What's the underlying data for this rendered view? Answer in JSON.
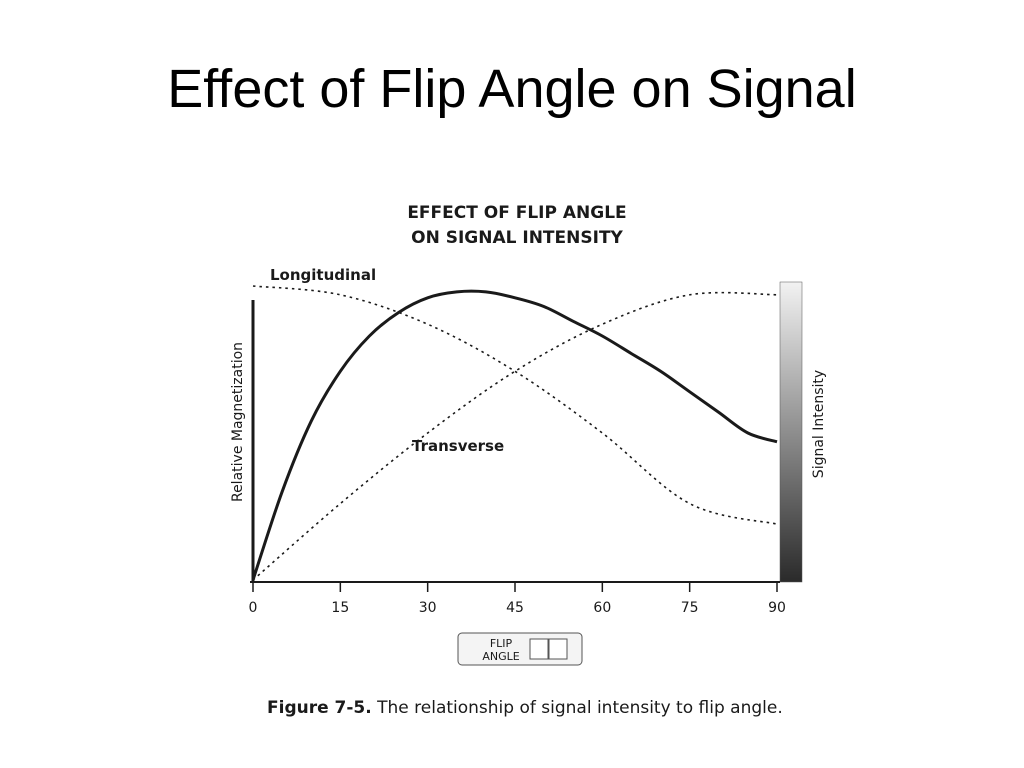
{
  "slide_title": "Effect of Flip Angle on Signal",
  "chart_data": {
    "type": "line",
    "title": "EFFECT OF FLIP ANGLE",
    "subtitle": "ON SIGNAL INTENSITY",
    "ylabel": "Relative Magnetization",
    "secondary_ylabel": "Signal Intensity",
    "xlabel": "",
    "xlim": [
      0,
      90
    ],
    "ylim": [
      0,
      1
    ],
    "grid": false,
    "xticks": [
      0,
      15,
      30,
      45,
      60,
      75,
      90
    ],
    "flip_angle_box": {
      "line1": "FLIP",
      "line2": "ANGLE"
    },
    "annotations": [
      {
        "text": "Longitudinal",
        "series": "longitudinal"
      },
      {
        "text": "Transverse",
        "series": "transverse"
      }
    ],
    "series": [
      {
        "name": "Longitudinal",
        "style": "dotted",
        "x": [
          0,
          15,
          30,
          45,
          60,
          75,
          90
        ],
        "y": [
          1.0,
          0.97,
          0.87,
          0.71,
          0.5,
          0.26,
          0.19
        ]
      },
      {
        "name": "Transverse",
        "style": "dotted",
        "x": [
          0,
          15,
          30,
          45,
          60,
          75,
          90
        ],
        "y": [
          0.0,
          0.26,
          0.5,
          0.71,
          0.87,
          0.97,
          0.97
        ]
      },
      {
        "name": "",
        "style": "solid",
        "x": [
          0,
          5,
          10,
          15,
          20,
          25,
          30,
          35,
          40,
          45,
          50,
          55,
          60,
          65,
          70,
          75,
          80,
          85,
          90
        ],
        "y": [
          0.0,
          0.3,
          0.54,
          0.71,
          0.83,
          0.91,
          0.96,
          0.98,
          0.98,
          0.96,
          0.93,
          0.88,
          0.83,
          0.77,
          0.71,
          0.64,
          0.57,
          0.5,
          0.47
        ]
      }
    ],
    "colors": {
      "ink": "#1a1a1a",
      "gradient_top": "#f2f2f2",
      "gradient_bottom": "#2a2a2a"
    }
  },
  "caption": {
    "figure_label": "Figure 7-5.",
    "text": "The relationship of signal intensity to flip angle."
  }
}
